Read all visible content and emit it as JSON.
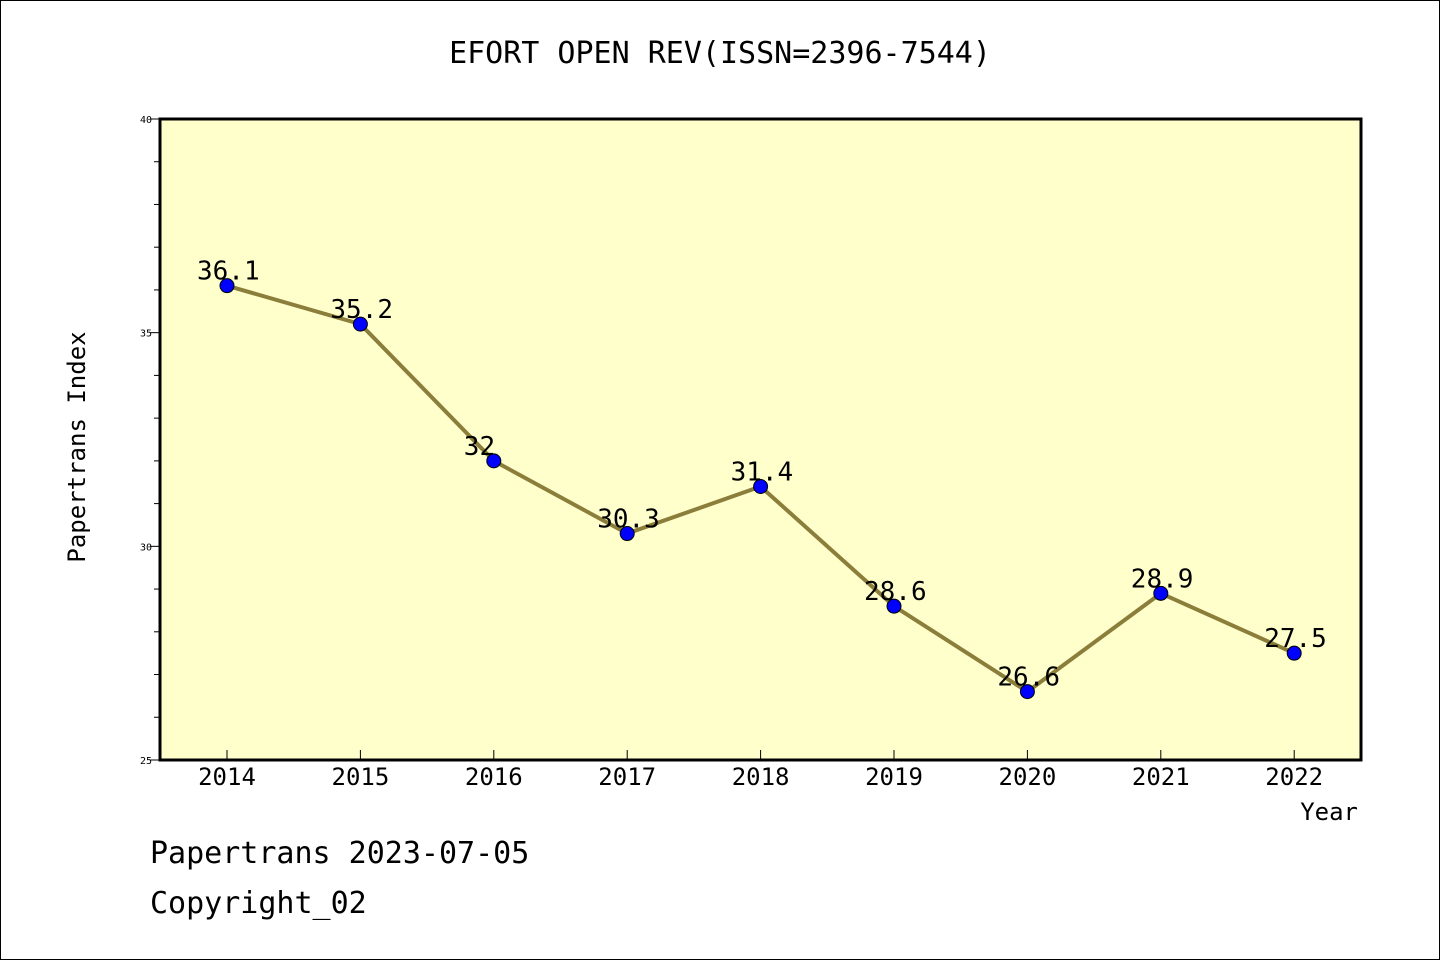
{
  "chart_data": {
    "type": "line",
    "title": "EFORT OPEN REV(ISSN=2396-7544)",
    "xlabel": "Year",
    "ylabel": "Papertrans Index",
    "categories": [
      "2014",
      "2015",
      "2016",
      "2017",
      "2018",
      "2019",
      "2020",
      "2021",
      "2022"
    ],
    "values": [
      36.1,
      35.2,
      32,
      30.3,
      31.4,
      28.6,
      26.6,
      28.9,
      27.5
    ],
    "data_labels": [
      "36.1",
      "35.2",
      "32",
      "30.3",
      "31.4",
      "28.6",
      "26.6",
      "28.9",
      "27.5"
    ],
    "ylim": [
      25,
      40
    ],
    "yticks": [
      "25",
      "30",
      "35",
      "40"
    ],
    "grid": false,
    "colors": {
      "plot_background": "#ffffcc",
      "line": "#8b7d3a",
      "marker": "#0000ff"
    }
  },
  "footer": {
    "date_text": "Papertrans 2023-07-05",
    "copyright_text": "Copyright_02"
  }
}
